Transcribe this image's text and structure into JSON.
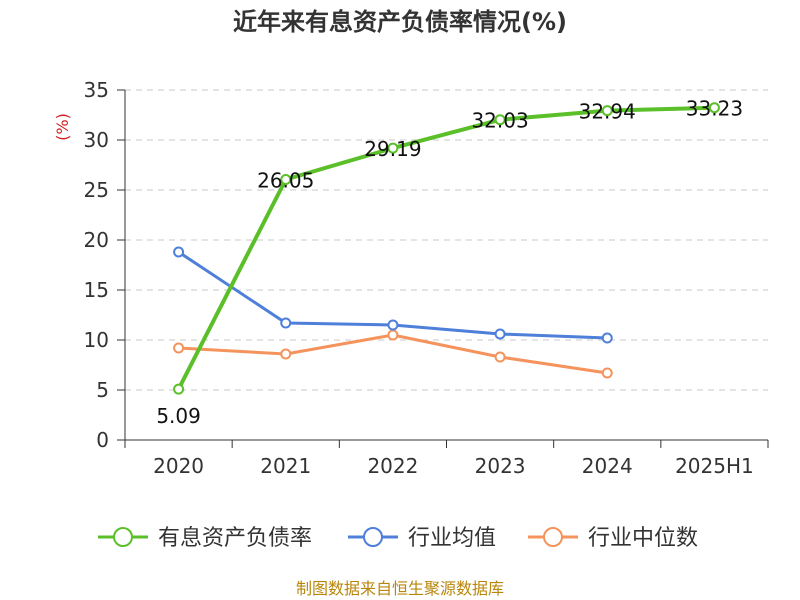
{
  "title": "近年来有息资产负债率情况(%)",
  "source": "制图数据来自恒生聚源数据库",
  "chart_data": {
    "type": "line",
    "title": "近年来有息资产负债率情况(%)",
    "ylabel": "(%)",
    "xlabel": "",
    "ylim": [
      0,
      35
    ],
    "yticks": [
      0,
      5,
      10,
      15,
      20,
      25,
      30,
      35
    ],
    "categories": [
      "2020",
      "2021",
      "2022",
      "2023",
      "2024",
      "2025H1"
    ],
    "grid": true,
    "legend_position": "bottom",
    "series": [
      {
        "name": "有息资产负债率",
        "color": "#5bbf2a",
        "values": [
          5.09,
          26.05,
          29.19,
          32.03,
          32.94,
          33.23
        ],
        "labels": [
          "5.09",
          "26.05",
          "29.19",
          "32.03",
          "32.94",
          "33.23"
        ]
      },
      {
        "name": "行业均值",
        "color": "#4e7fd9",
        "values": [
          18.8,
          11.7,
          11.5,
          10.6,
          10.2,
          null
        ]
      },
      {
        "name": "行业中位数",
        "color": "#f5935c",
        "values": [
          9.2,
          8.6,
          10.5,
          8.3,
          6.7,
          null
        ]
      }
    ]
  }
}
